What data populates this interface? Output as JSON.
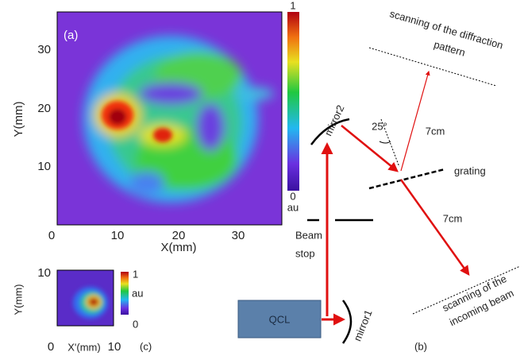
{
  "panel_a": {
    "label": "(a)",
    "xlabel": "X(mm)",
    "ylabel": "Y(mm)",
    "xticks": [
      "0",
      "10",
      "20",
      "30"
    ],
    "yticks": [
      "10",
      "20",
      "30"
    ],
    "colorbar": {
      "max": "1",
      "min": "0",
      "unit": "au"
    }
  },
  "panel_c": {
    "label": "(c)",
    "xlabel": "X'(mm)",
    "ylabel": "Y(mm)",
    "xticks": [
      "0",
      "10"
    ],
    "yticks": [
      "10"
    ],
    "colorbar": {
      "max": "1",
      "min": "0",
      "unit": "au"
    }
  },
  "panel_b": {
    "label": "(b)",
    "diffraction_scan": [
      "scanning of the diffraction",
      "pattern"
    ],
    "mirror2": "mirror2",
    "angle": "25°",
    "distance_top": "7cm",
    "grating": "grating",
    "distance_bottom": "7cm",
    "beam_stop": [
      "Beam",
      "stop"
    ],
    "source": "QCL",
    "mirror1": "mirror1",
    "incoming_scan": [
      "scanning of the",
      "incoming beam"
    ]
  }
}
